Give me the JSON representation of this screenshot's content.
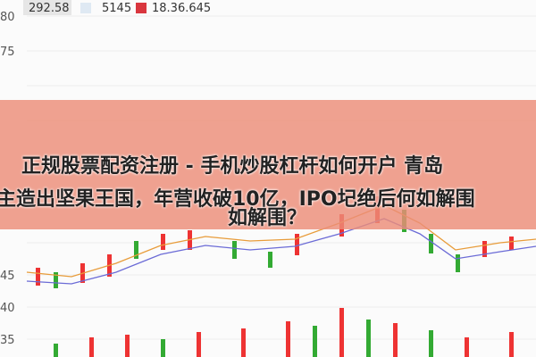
{
  "legend": [
    "292.58",
    "5145",
    "18.36.645"
  ],
  "axis_labels": [
    "80",
    "75",
    "45",
    "40",
    "35"
  ],
  "headline": [
    "正规股票配资注册 - 手机炒股杠杆如何开户 青岛",
    "主造出坚果王国，年营收破10亿，IPO圮绝后何如解围",
    "如解围？"
  ]
}
